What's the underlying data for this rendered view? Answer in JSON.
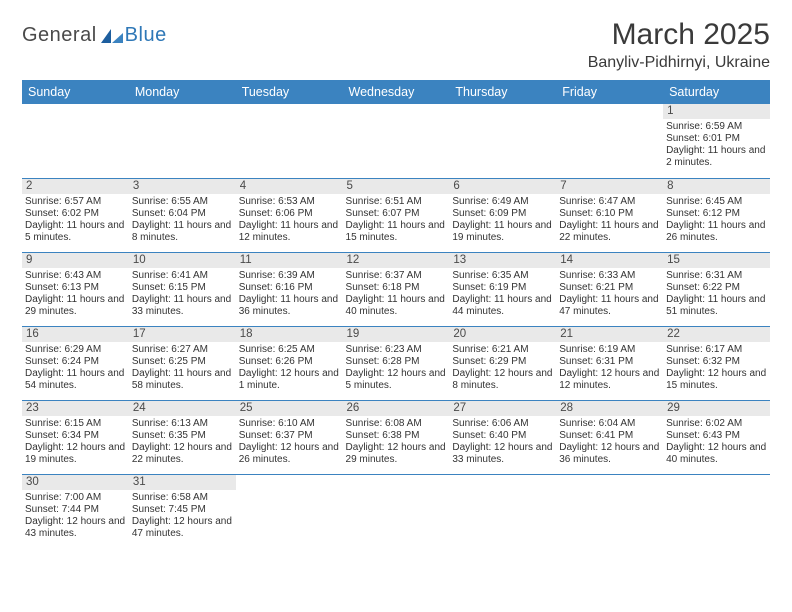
{
  "logo": {
    "word1": "General",
    "word2": "Blue",
    "word1_color": "#4a4a4a",
    "word2_color": "#2f78b7"
  },
  "title": "March 2025",
  "location": "Banyliv-Pidhirnyi, Ukraine",
  "colors": {
    "header_bg": "#3b83c0",
    "header_fg": "#ffffff",
    "daynum_bg": "#e9e9e9",
    "row_border": "#3b83c0"
  },
  "weekdays": [
    "Sunday",
    "Monday",
    "Tuesday",
    "Wednesday",
    "Thursday",
    "Friday",
    "Saturday"
  ],
  "weeks": [
    [
      null,
      null,
      null,
      null,
      null,
      null,
      {
        "n": "1",
        "sunrise": "6:59 AM",
        "sunset": "6:01 PM",
        "daylight": "11 hours and 2 minutes."
      }
    ],
    [
      {
        "n": "2",
        "sunrise": "6:57 AM",
        "sunset": "6:02 PM",
        "daylight": "11 hours and 5 minutes."
      },
      {
        "n": "3",
        "sunrise": "6:55 AM",
        "sunset": "6:04 PM",
        "daylight": "11 hours and 8 minutes."
      },
      {
        "n": "4",
        "sunrise": "6:53 AM",
        "sunset": "6:06 PM",
        "daylight": "11 hours and 12 minutes."
      },
      {
        "n": "5",
        "sunrise": "6:51 AM",
        "sunset": "6:07 PM",
        "daylight": "11 hours and 15 minutes."
      },
      {
        "n": "6",
        "sunrise": "6:49 AM",
        "sunset": "6:09 PM",
        "daylight": "11 hours and 19 minutes."
      },
      {
        "n": "7",
        "sunrise": "6:47 AM",
        "sunset": "6:10 PM",
        "daylight": "11 hours and 22 minutes."
      },
      {
        "n": "8",
        "sunrise": "6:45 AM",
        "sunset": "6:12 PM",
        "daylight": "11 hours and 26 minutes."
      }
    ],
    [
      {
        "n": "9",
        "sunrise": "6:43 AM",
        "sunset": "6:13 PM",
        "daylight": "11 hours and 29 minutes."
      },
      {
        "n": "10",
        "sunrise": "6:41 AM",
        "sunset": "6:15 PM",
        "daylight": "11 hours and 33 minutes."
      },
      {
        "n": "11",
        "sunrise": "6:39 AM",
        "sunset": "6:16 PM",
        "daylight": "11 hours and 36 minutes."
      },
      {
        "n": "12",
        "sunrise": "6:37 AM",
        "sunset": "6:18 PM",
        "daylight": "11 hours and 40 minutes."
      },
      {
        "n": "13",
        "sunrise": "6:35 AM",
        "sunset": "6:19 PM",
        "daylight": "11 hours and 44 minutes."
      },
      {
        "n": "14",
        "sunrise": "6:33 AM",
        "sunset": "6:21 PM",
        "daylight": "11 hours and 47 minutes."
      },
      {
        "n": "15",
        "sunrise": "6:31 AM",
        "sunset": "6:22 PM",
        "daylight": "11 hours and 51 minutes."
      }
    ],
    [
      {
        "n": "16",
        "sunrise": "6:29 AM",
        "sunset": "6:24 PM",
        "daylight": "11 hours and 54 minutes."
      },
      {
        "n": "17",
        "sunrise": "6:27 AM",
        "sunset": "6:25 PM",
        "daylight": "11 hours and 58 minutes."
      },
      {
        "n": "18",
        "sunrise": "6:25 AM",
        "sunset": "6:26 PM",
        "daylight": "12 hours and 1 minute."
      },
      {
        "n": "19",
        "sunrise": "6:23 AM",
        "sunset": "6:28 PM",
        "daylight": "12 hours and 5 minutes."
      },
      {
        "n": "20",
        "sunrise": "6:21 AM",
        "sunset": "6:29 PM",
        "daylight": "12 hours and 8 minutes."
      },
      {
        "n": "21",
        "sunrise": "6:19 AM",
        "sunset": "6:31 PM",
        "daylight": "12 hours and 12 minutes."
      },
      {
        "n": "22",
        "sunrise": "6:17 AM",
        "sunset": "6:32 PM",
        "daylight": "12 hours and 15 minutes."
      }
    ],
    [
      {
        "n": "23",
        "sunrise": "6:15 AM",
        "sunset": "6:34 PM",
        "daylight": "12 hours and 19 minutes."
      },
      {
        "n": "24",
        "sunrise": "6:13 AM",
        "sunset": "6:35 PM",
        "daylight": "12 hours and 22 minutes."
      },
      {
        "n": "25",
        "sunrise": "6:10 AM",
        "sunset": "6:37 PM",
        "daylight": "12 hours and 26 minutes."
      },
      {
        "n": "26",
        "sunrise": "6:08 AM",
        "sunset": "6:38 PM",
        "daylight": "12 hours and 29 minutes."
      },
      {
        "n": "27",
        "sunrise": "6:06 AM",
        "sunset": "6:40 PM",
        "daylight": "12 hours and 33 minutes."
      },
      {
        "n": "28",
        "sunrise": "6:04 AM",
        "sunset": "6:41 PM",
        "daylight": "12 hours and 36 minutes."
      },
      {
        "n": "29",
        "sunrise": "6:02 AM",
        "sunset": "6:43 PM",
        "daylight": "12 hours and 40 minutes."
      }
    ],
    [
      {
        "n": "30",
        "sunrise": "7:00 AM",
        "sunset": "7:44 PM",
        "daylight": "12 hours and 43 minutes."
      },
      {
        "n": "31",
        "sunrise": "6:58 AM",
        "sunset": "7:45 PM",
        "daylight": "12 hours and 47 minutes."
      },
      null,
      null,
      null,
      null,
      null
    ]
  ],
  "labels": {
    "sunrise": "Sunrise:",
    "sunset": "Sunset:",
    "daylight": "Daylight:"
  }
}
